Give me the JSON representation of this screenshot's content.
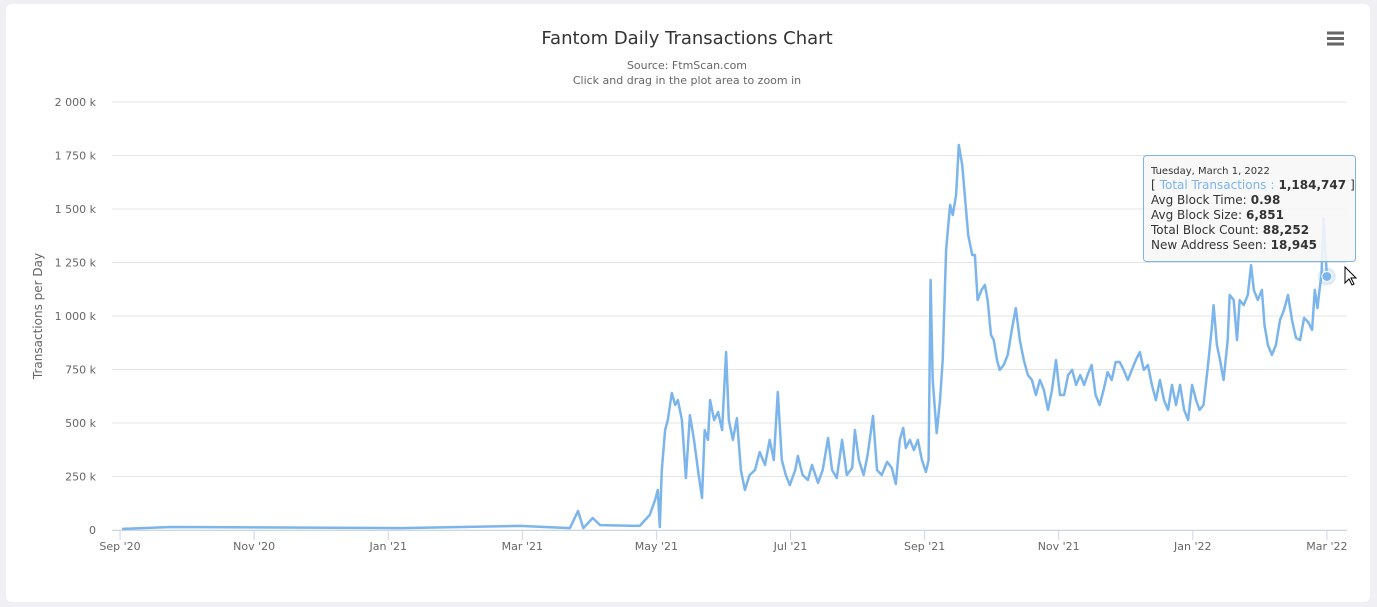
{
  "chart_data": {
    "type": "line",
    "title": "Fantom Daily Transactions Chart",
    "subtitle": "Source: FtmScan.com",
    "subtitle2": "Click and drag in the plot area to zoom in",
    "y_label": "Transactions per Day",
    "ylim": [
      0,
      2000000
    ],
    "yticks": [
      {
        "value": 0,
        "label": "0"
      },
      {
        "value": 250000,
        "label": "250 k"
      },
      {
        "value": 500000,
        "label": "500 k"
      },
      {
        "value": 750000,
        "label": "750 k"
      },
      {
        "value": 1000000,
        "label": "1 000 k"
      },
      {
        "value": 1250000,
        "label": "1 250 k"
      },
      {
        "value": 1500000,
        "label": "1 500 k"
      },
      {
        "value": 1750000,
        "label": "1 750 k"
      },
      {
        "value": 2000000,
        "label": "2 000 k"
      }
    ],
    "xlim": [
      -0.12,
      18.3
    ],
    "xticks": [
      {
        "value": 0,
        "label": "Sep '20"
      },
      {
        "value": 2,
        "label": "Nov '20"
      },
      {
        "value": 4,
        "label": "Jan '21"
      },
      {
        "value": 6,
        "label": "Mar '21"
      },
      {
        "value": 8,
        "label": "May '21"
      },
      {
        "value": 10,
        "label": "Jul '21"
      },
      {
        "value": 12,
        "label": "Sep '21"
      },
      {
        "value": 14,
        "label": "Nov '21"
      },
      {
        "value": 16,
        "label": "Jan '22"
      },
      {
        "value": 18,
        "label": "Mar '22"
      }
    ],
    "grid": true,
    "x": [
      0.03,
      0.75,
      4.18,
      5.96,
      6.71,
      6.83,
      6.91,
      7.05,
      7.16,
      7.75,
      7.9,
      7.98,
      8.02,
      8.05,
      8.08,
      8.13,
      8.17,
      8.23,
      8.28,
      8.32,
      8.38,
      8.44,
      8.5,
      8.56,
      8.62,
      8.68,
      8.72,
      8.77,
      8.8,
      8.86,
      8.92,
      8.98,
      9.04,
      9.08,
      9.14,
      9.2,
      9.26,
      9.32,
      9.39,
      9.47,
      9.54,
      9.62,
      9.69,
      9.75,
      9.81,
      9.87,
      9.93,
      9.99,
      10.07,
      10.11,
      10.18,
      10.26,
      10.32,
      10.41,
      10.48,
      10.56,
      10.62,
      10.69,
      10.77,
      10.84,
      10.92,
      10.96,
      11.02,
      11.09,
      11.15,
      11.23,
      11.29,
      11.36,
      11.44,
      11.51,
      11.57,
      11.63,
      11.68,
      11.72,
      11.78,
      11.84,
      11.9,
      11.96,
      12.02,
      12.06,
      12.09,
      12.12,
      12.18,
      12.23,
      12.27,
      12.32,
      12.38,
      12.42,
      12.47,
      12.51,
      12.56,
      12.6,
      12.65,
      12.71,
      12.75,
      12.79,
      12.85,
      12.9,
      12.94,
      12.99,
      13.03,
      13.08,
      13.12,
      13.18,
      13.24,
      13.3,
      13.36,
      13.42,
      13.48,
      13.54,
      13.6,
      13.66,
      13.72,
      13.78,
      13.84,
      13.9,
      13.96,
      14.02,
      14.08,
      14.14,
      14.2,
      14.26,
      14.32,
      14.38,
      14.43,
      14.49,
      14.55,
      14.61,
      14.67,
      14.73,
      14.79,
      14.85,
      14.91,
      14.97,
      15.03,
      15.09,
      15.15,
      15.21,
      15.27,
      15.33,
      15.39,
      15.45,
      15.51,
      15.57,
      15.63,
      15.69,
      15.75,
      15.81,
      15.87,
      15.93,
      15.99,
      16.05,
      16.1,
      16.16,
      16.22,
      16.28,
      16.31,
      16.36,
      16.4,
      16.46,
      16.52,
      16.55,
      16.61,
      16.66,
      16.7,
      16.76,
      16.82,
      16.87,
      16.91,
      16.97,
      17.03,
      17.07,
      17.12,
      17.18,
      17.24,
      17.3,
      17.36,
      17.42,
      17.48,
      17.54,
      17.6,
      17.66,
      17.72,
      17.78,
      17.82,
      17.86,
      17.89,
      17.92,
      17.95,
      18.0
    ],
    "series": [
      {
        "name": "Total Transactions",
        "color": "#7cb5ec",
        "values": [
          5000,
          14000,
          9000,
          19000,
          9000,
          89000,
          9000,
          56000,
          23000,
          19000,
          70000,
          140000,
          187000,
          14000,
          280000,
          467000,
          514000,
          640000,
          584000,
          607000,
          514000,
          243000,
          537000,
          421000,
          280000,
          150000,
          467000,
          421000,
          607000,
          514000,
          551000,
          467000,
          832000,
          514000,
          421000,
          523000,
          280000,
          187000,
          257000,
          280000,
          364000,
          304000,
          421000,
          327000,
          645000,
          327000,
          257000,
          210000,
          280000,
          346000,
          257000,
          234000,
          304000,
          220000,
          280000,
          430000,
          280000,
          243000,
          421000,
          257000,
          290000,
          467000,
          327000,
          257000,
          350000,
          533000,
          280000,
          257000,
          318000,
          290000,
          215000,
          421000,
          477000,
          383000,
          421000,
          374000,
          421000,
          327000,
          271000,
          327000,
          1168000,
          701000,
          453000,
          607000,
          794000,
          1308000,
          1519000,
          1472000,
          1565000,
          1799000,
          1706000,
          1565000,
          1379000,
          1285000,
          1285000,
          1075000,
          1122000,
          1145000,
          1075000,
          911000,
          888000,
          794000,
          748000,
          771000,
          818000,
          935000,
          1037000,
          888000,
          794000,
          724000,
          701000,
          631000,
          701000,
          654000,
          561000,
          654000,
          794000,
          631000,
          631000,
          724000,
          748000,
          678000,
          724000,
          678000,
          724000,
          771000,
          631000,
          584000,
          654000,
          738000,
          701000,
          785000,
          785000,
          748000,
          701000,
          748000,
          794000,
          832000,
          748000,
          771000,
          678000,
          607000,
          701000,
          607000,
          561000,
          678000,
          584000,
          678000,
          561000,
          514000,
          678000,
          607000,
          561000,
          584000,
          748000,
          935000,
          1051000,
          864000,
          804000,
          701000,
          888000,
          1098000,
          1075000,
          888000,
          1075000,
          1051000,
          1098000,
          1238000,
          1122000,
          1075000,
          1122000,
          958000,
          864000,
          818000,
          864000,
          981000,
          1028000,
          1098000,
          981000,
          897000,
          888000,
          991000,
          972000,
          935000,
          1122000,
          1037000,
          1122000,
          1192000,
          1458000,
          1184747
        ]
      }
    ],
    "tooltip": {
      "date": "Tuesday, March 1, 2022",
      "open": "[",
      "separator": ":",
      "value": "1,184,747",
      "close": "]",
      "rows": [
        {
          "label": "Avg Block Time:",
          "value": "0.98"
        },
        {
          "label": "Avg Block Size:",
          "value": "6,851"
        },
        {
          "label": "Total Block Count:",
          "value": "88,252"
        },
        {
          "label": "New Address Seen:",
          "value": "18,945"
        }
      ]
    }
  }
}
